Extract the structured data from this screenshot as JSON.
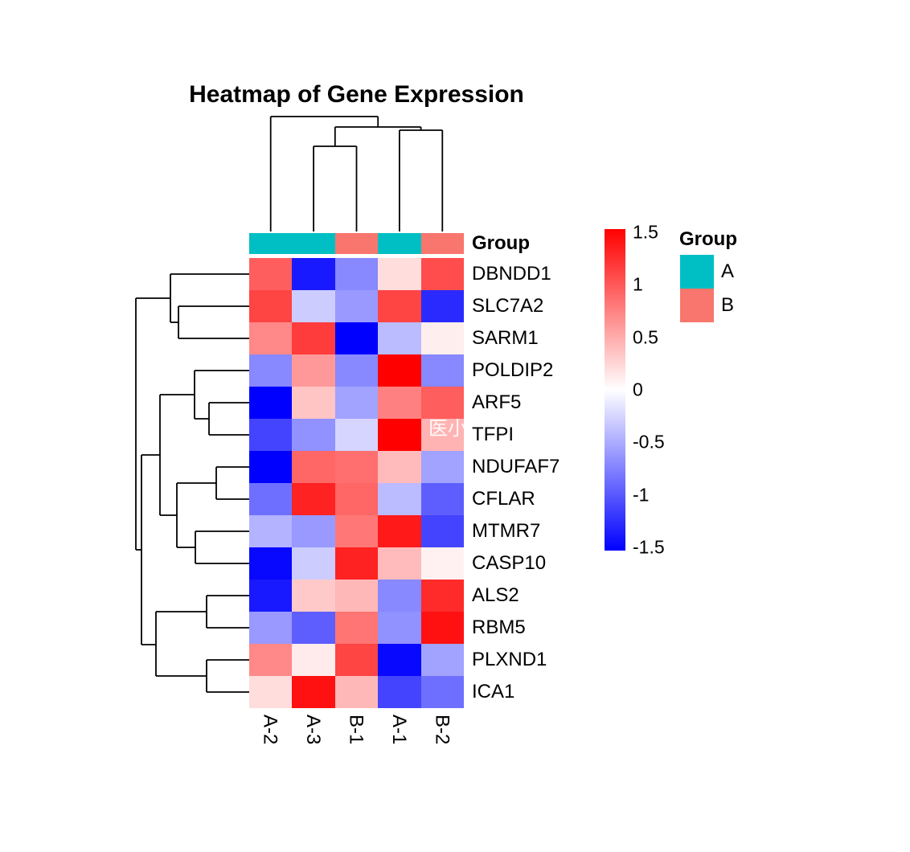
{
  "title": "Heatmap of Gene Expression",
  "watermark": "医小",
  "annotation": {
    "label": "Group",
    "column_groups": [
      "A",
      "A",
      "B",
      "A",
      "B"
    ],
    "group_colors": {
      "A": "#00BFC4",
      "B": "#F8766D"
    }
  },
  "legend": {
    "group_title": "Group",
    "entries": [
      {
        "label": "A",
        "color": "#00BFC4"
      },
      {
        "label": "B",
        "color": "#F8766D"
      }
    ]
  },
  "colorbar": {
    "ticks": [
      "1.5",
      "1",
      "0.5",
      "0",
      "-0.5",
      "-1",
      "-1.5"
    ],
    "max_color": "#FF0000",
    "mid_color": "#FFFFFF",
    "min_color": "#0000FF"
  },
  "chart_data": {
    "type": "heatmap",
    "title": "Heatmap of Gene Expression",
    "columns": [
      "A-2",
      "A-3",
      "B-1",
      "A-1",
      "B-2"
    ],
    "rows": [
      "DBNDD1",
      "SLC7A2",
      "SARM1",
      "POLDIP2",
      "ARF5",
      "TFPI",
      "NDUFAF7",
      "CFLAR",
      "MTMR7",
      "CASP10",
      "ALS2",
      "RBM5",
      "PLXND1",
      "ICA1"
    ],
    "values": [
      [
        0.95,
        -1.35,
        -0.7,
        0.2,
        1.05
      ],
      [
        1.1,
        -0.3,
        -0.6,
        1.1,
        -1.25
      ],
      [
        0.7,
        1.15,
        -1.5,
        -0.4,
        0.1
      ],
      [
        -0.7,
        0.6,
        -0.7,
        1.5,
        -0.7
      ],
      [
        -1.5,
        0.35,
        -0.55,
        0.75,
        0.95
      ],
      [
        -1.1,
        -0.65,
        -0.25,
        1.5,
        0.45
      ],
      [
        -1.5,
        0.9,
        0.85,
        0.4,
        -0.55
      ],
      [
        -0.85,
        1.3,
        0.9,
        -0.4,
        -0.95
      ],
      [
        -0.45,
        -0.6,
        0.8,
        1.35,
        -1.1
      ],
      [
        -1.45,
        -0.3,
        1.3,
        0.4,
        0.08
      ],
      [
        -1.35,
        0.32,
        0.42,
        -0.7,
        1.25
      ],
      [
        -0.6,
        -0.95,
        0.82,
        -0.65,
        1.4
      ],
      [
        0.7,
        0.12,
        1.1,
        -1.45,
        -0.55
      ],
      [
        0.2,
        1.4,
        0.42,
        -1.1,
        -0.85
      ]
    ],
    "color_scale": {
      "min": -1.5,
      "mid": 0,
      "max": 1.5,
      "min_color": "#0000FF",
      "mid_color": "#FFFFFF",
      "max_color": "#FF0000"
    },
    "column_annotation": {
      "name": "Group",
      "values": [
        "A",
        "A",
        "B",
        "A",
        "B"
      ]
    },
    "legend_position": "right",
    "column_dendrogram_segments": [
      [
        336.7,
        288,
        336.7,
        145
      ],
      [
        336.7,
        145,
        470.2,
        145
      ],
      [
        470.2,
        145,
        470.2,
        158
      ],
      [
        416.8,
        158,
        523.6,
        158
      ],
      [
        416.8,
        158,
        416.8,
        182
      ],
      [
        390.1,
        182,
        443.5,
        182
      ],
      [
        390.1,
        182,
        390.1,
        288
      ],
      [
        443.5,
        182,
        443.5,
        288
      ],
      [
        523.6,
        158,
        523.6,
        162
      ],
      [
        496.9,
        162,
        550.3,
        162
      ],
      [
        496.9,
        162,
        496.9,
        288
      ],
      [
        550.3,
        162,
        550.3,
        288
      ]
    ],
    "row_dendrogram_segments": [
      [
        212,
        341,
        310,
        341
      ],
      [
        222,
        381,
        310,
        381
      ],
      [
        222,
        421,
        310,
        421
      ],
      [
        222,
        381,
        222,
        421
      ],
      [
        212,
        401,
        222,
        401
      ],
      [
        212,
        341,
        212,
        401
      ],
      [
        169,
        371,
        212,
        371
      ],
      [
        169,
        371,
        169,
        684
      ],
      [
        169,
        684,
        176,
        684
      ],
      [
        176,
        566,
        176,
        802
      ],
      [
        176,
        566,
        199,
        566
      ],
      [
        199,
        491,
        199,
        641
      ],
      [
        199,
        491,
        242,
        491
      ],
      [
        242,
        461,
        242,
        521
      ],
      [
        242,
        461,
        310,
        461
      ],
      [
        242,
        521,
        260,
        521
      ],
      [
        260,
        501,
        260,
        541
      ],
      [
        260,
        501,
        310,
        501
      ],
      [
        260,
        541,
        310,
        541
      ],
      [
        199,
        641,
        220,
        641
      ],
      [
        220,
        601,
        220,
        681
      ],
      [
        220,
        601,
        269,
        601
      ],
      [
        269,
        581,
        269,
        621
      ],
      [
        269,
        581,
        310,
        581
      ],
      [
        269,
        621,
        310,
        621
      ],
      [
        220,
        681,
        243,
        681
      ],
      [
        243,
        661,
        243,
        701
      ],
      [
        243,
        661,
        310,
        661
      ],
      [
        243,
        701,
        310,
        701
      ],
      [
        176,
        802,
        194,
        802
      ],
      [
        194,
        761,
        194,
        841
      ],
      [
        194,
        761,
        257,
        761
      ],
      [
        257,
        741,
        257,
        781
      ],
      [
        257,
        741,
        310,
        741
      ],
      [
        257,
        781,
        310,
        781
      ],
      [
        194,
        841,
        257,
        841
      ],
      [
        257,
        821,
        257,
        861
      ],
      [
        257,
        821,
        310,
        821
      ],
      [
        257,
        861,
        310,
        861
      ]
    ]
  }
}
